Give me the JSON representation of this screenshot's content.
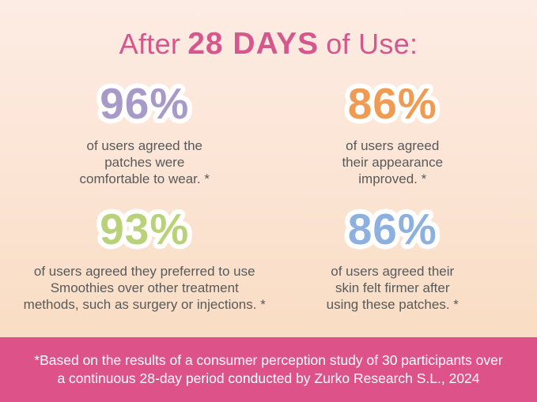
{
  "title": {
    "prefix": "After",
    "highlight": "28 DAYS",
    "suffix": "of Use:"
  },
  "stats": [
    {
      "id": "comfort",
      "value": "96%",
      "color": "#a79ac8",
      "description": "of users agreed the\npatches were\ncomfortable to wear. *"
    },
    {
      "id": "appearance",
      "value": "86%",
      "color": "#f09b53",
      "description": "of users agreed\ntheir appearance\nimproved. *"
    },
    {
      "id": "preference",
      "value": "93%",
      "color": "#b9d178",
      "description": "of users agreed they preferred to use\nSmoothies over other treatment\nmethods, such as surgery or injections. *"
    },
    {
      "id": "firmness",
      "value": "86%",
      "color": "#8eb0df",
      "description": "of users agreed their\nskin felt firmer after\nusing these patches. *"
    }
  ],
  "footnote": {
    "text": "*Based on the results of a consumer perception study of 30 participants over\na continuous 28-day period conducted by Zurko Research S.L., 2024",
    "background": "#dc5289"
  },
  "colors": {
    "title_pink": "#d5578d",
    "body_text": "#58595b",
    "background_top": "#fdece4",
    "background_bottom": "#f8dabd",
    "outline_white": "#ffffff"
  },
  "chart_data": {
    "type": "table",
    "title": "After 28 DAYS of Use:",
    "categories": [
      "patches were comfortable to wear",
      "appearance improved",
      "preferred Smoothies over other treatment methods (surgery or injections)",
      "skin felt firmer after using these patches"
    ],
    "values": [
      96,
      86,
      93,
      86
    ],
    "unit": "%",
    "source_note": "Consumer perception study, 30 participants, continuous 28-day period, Zurko Research S.L., 2024"
  }
}
